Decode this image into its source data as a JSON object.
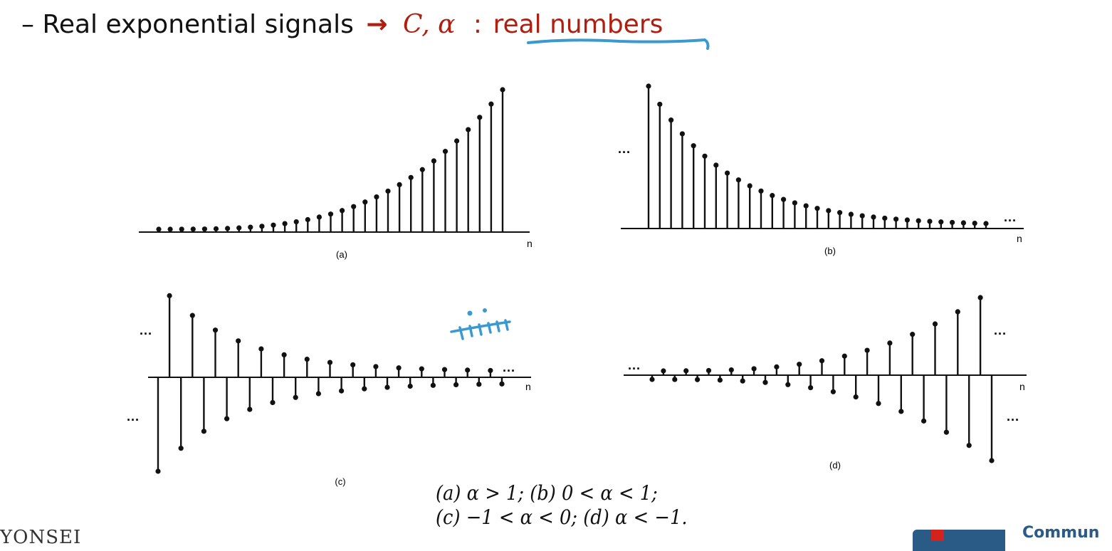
{
  "slide": {
    "bullet_dash": "–",
    "bullet_text": "Real exponential signals",
    "arrow": "→",
    "variables": "C, α",
    "colon": ":",
    "highlight": "real numbers",
    "highlight_underline_color": "#3a9ad0",
    "accent_color": "#b01e10"
  },
  "figures": [
    {
      "panel_label": "(a)",
      "axis_label": "n",
      "ellipsis_left": "",
      "ellipsis_right": "",
      "ellipsis_below": ""
    },
    {
      "panel_label": "(b)",
      "axis_label": "n",
      "ellipsis_left": "···",
      "ellipsis_right": "···",
      "ellipsis_below": ""
    },
    {
      "panel_label": "(c)",
      "axis_label": "n",
      "ellipsis_left": "···",
      "ellipsis_right": "···",
      "ellipsis_below": "···"
    },
    {
      "panel_label": "(d)",
      "axis_label": "n",
      "ellipsis_left": "···",
      "ellipsis_right": "···",
      "ellipsis_below": "···"
    }
  ],
  "caption": {
    "line1": "(a) α > 1; (b) 0 < α < 1;",
    "line2": "(c) −1 < α < 0; (d) α < −1."
  },
  "footer": {
    "logo_left_text": "YONSEI",
    "logo_right_text": "Commun"
  }
}
